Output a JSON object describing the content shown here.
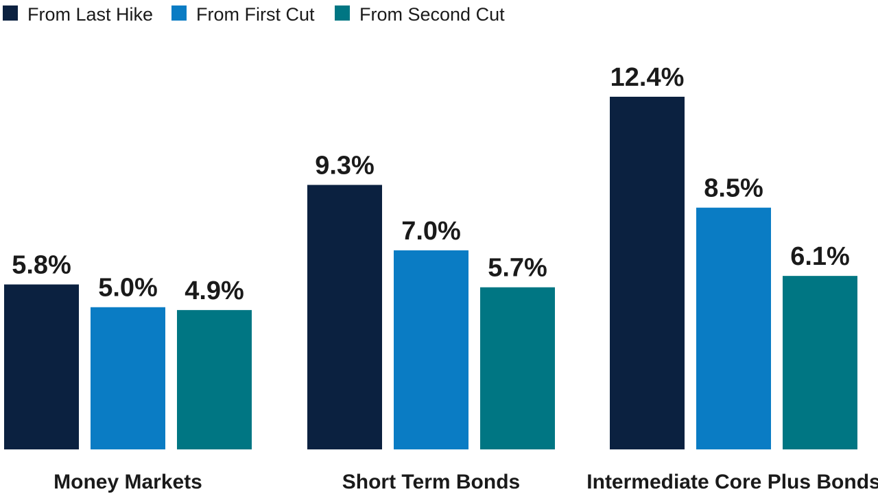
{
  "chart_data": {
    "type": "bar",
    "categories": [
      "Money Markets",
      "Short Term Bonds",
      "Intermediate Core Plus Bonds"
    ],
    "series": [
      {
        "name": "From Last Hike",
        "color": "#0b2140",
        "values": [
          5.8,
          9.3,
          12.4
        ],
        "labels": [
          "5.8%",
          "9.3%",
          "12.4%"
        ]
      },
      {
        "name": "From First Cut",
        "color": "#0a7cc4",
        "values": [
          5.0,
          7.0,
          8.5
        ],
        "labels": [
          "5.0%",
          "7.0%",
          "8.5%"
        ]
      },
      {
        "name": "From Second Cut",
        "color": "#007683",
        "values": [
          4.9,
          5.7,
          6.1
        ],
        "labels": [
          "4.9%",
          "5.7%",
          "6.1%"
        ]
      }
    ],
    "ylim": [
      0,
      12.4
    ],
    "grid": false,
    "legend_position": "top-left",
    "title": "",
    "xlabel": "",
    "ylabel": ""
  }
}
